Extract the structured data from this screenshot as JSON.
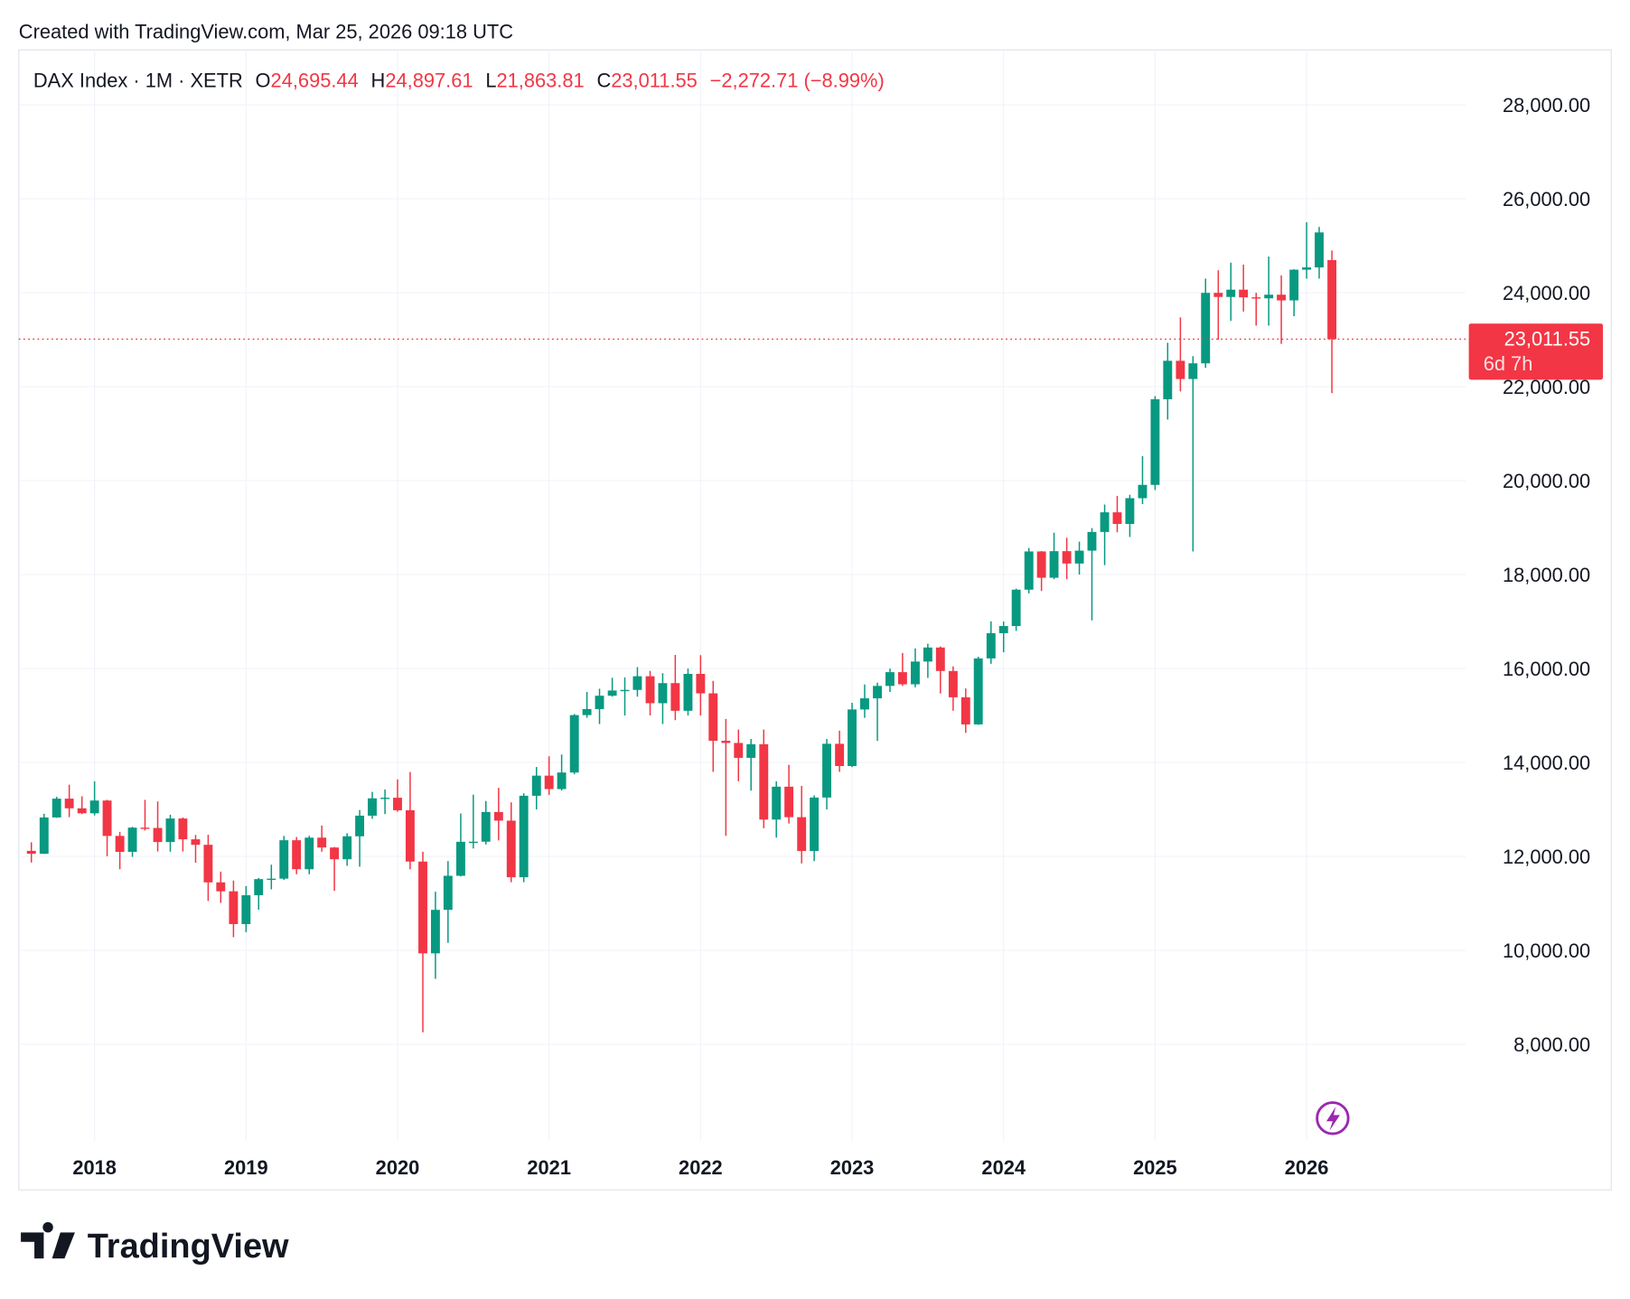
{
  "header": {
    "created": "Created with TradingView.com, Mar 25, 2026 09:18 UTC",
    "symbol": "DAX Index · 1M · XETR",
    "o": "O",
    "open": "24,695.44",
    "h": "H",
    "high": "24,897.61",
    "l": "L",
    "low": "21,863.81",
    "c": "C",
    "close": "23,011.55",
    "change": "−2,272.71 (−8.99%)"
  },
  "chart_data": {
    "type": "candlestick",
    "up_color": "#089981",
    "down_color": "#f23645",
    "grid": true,
    "x": [
      2017.583,
      2017.667,
      2017.75,
      2017.833,
      2017.917,
      2018,
      2018.083,
      2018.167,
      2018.25,
      2018.333,
      2018.417,
      2018.5,
      2018.583,
      2018.667,
      2018.75,
      2018.833,
      2018.917,
      2019,
      2019.083,
      2019.167,
      2019.25,
      2019.333,
      2019.417,
      2019.5,
      2019.583,
      2019.667,
      2019.75,
      2019.833,
      2019.917,
      2020,
      2020.083,
      2020.167,
      2020.25,
      2020.333,
      2020.417,
      2020.5,
      2020.583,
      2020.667,
      2020.75,
      2020.833,
      2020.917,
      2021,
      2021.083,
      2021.167,
      2021.25,
      2021.333,
      2021.417,
      2021.5,
      2021.583,
      2021.667,
      2021.75,
      2021.833,
      2021.917,
      2022,
      2022.083,
      2022.167,
      2022.25,
      2022.333,
      2022.417,
      2022.5,
      2022.583,
      2022.667,
      2022.75,
      2022.833,
      2022.917,
      2023,
      2023.083,
      2023.167,
      2023.25,
      2023.333,
      2023.417,
      2023.5,
      2023.583,
      2023.667,
      2023.75,
      2023.833,
      2023.917,
      2024,
      2024.083,
      2024.167,
      2024.25,
      2024.333,
      2024.417,
      2024.5,
      2024.583,
      2024.667,
      2024.75,
      2024.833,
      2024.917,
      2025,
      2025.083,
      2025.167,
      2025.25,
      2025.333,
      2025.417,
      2025.5,
      2025.583,
      2025.667,
      2025.75,
      2025.833,
      2025.917,
      2026,
      2026.083,
      2026.167
    ],
    "open": [
      12118,
      12056,
      12829,
      13229,
      13024,
      12918,
      13189,
      12436,
      12097,
      12612,
      12605,
      12306,
      12806,
      12364,
      12247,
      11447,
      11257,
      10559,
      11173,
      11516,
      11526,
      12344,
      11727,
      12399,
      12189,
      11939,
      12428,
      12867,
      13236,
      13249,
      12982,
      11890,
      9936,
      10862,
      11587,
      12311,
      12313,
      12945,
      12761,
      11556,
      13291,
      13719,
      13433,
      13786,
      15008,
      15136,
      15421,
      15531,
      15544,
      15835,
      15261,
      15689,
      15100,
      15885,
      15471,
      14461,
      14415,
      14098,
      14388,
      12784,
      13484,
      12835,
      12114,
      13253,
      14397,
      13924,
      15128,
      15365,
      15629,
      15922,
      15664,
      16148,
      16447,
      15947,
      15387,
      14810,
      16215,
      16752,
      16904,
      17678,
      18492,
      17932,
      18498,
      18235,
      18509,
      18907,
      19325,
      19078,
      19626,
      19909,
      21732,
      22551,
      22163,
      22497,
      23997,
      23910,
      24065,
      23902,
      23881,
      23958,
      23837,
      24490,
      24539,
      24695.44
    ],
    "high": [
      12301,
      12907,
      13269,
      13526,
      13279,
      13597,
      13205,
      12522,
      12630,
      13204,
      13170,
      12887,
      12830,
      12457,
      12461,
      11677,
      11486,
      11368,
      11540,
      11823,
      12435,
      12413,
      12438,
      12656,
      12200,
      12494,
      12988,
      13374,
      13425,
      13640,
      13795,
      12100,
      11247,
      11900,
      12913,
      13314,
      13180,
      13460,
      13150,
      13344,
      13903,
      14131,
      14169,
      15030,
      15502,
      15569,
      15803,
      15810,
      16030,
      15950,
      15900,
      16290,
      16000,
      16285,
      15736,
      14925,
      14700,
      14500,
      14700,
      13600,
      13950,
      13500,
      13300,
      14500,
      14675,
      15270,
      15660,
      15700,
      16000,
      16331,
      16427,
      16528,
      16470,
      16045,
      15575,
      16250,
      17003,
      17000,
      17700,
      18567,
      18500,
      18892,
      18784,
      18700,
      18990,
      19491,
      19675,
      19700,
      20523,
      21800,
      22935,
      23476,
      22650,
      24300,
      24479,
      24640,
      24600,
      24000,
      24771,
      24370,
      24500,
      25500,
      25400,
      24897.61
    ],
    "low": [
      11869,
      12053,
      12820,
      12836,
      12900,
      12871,
      12003,
      11727,
      11990,
      12550,
      12104,
      12100,
      12105,
      11865,
      11051,
      11009,
      10279,
      10386,
      10864,
      11299,
      11500,
      11620,
      11620,
      12100,
      11266,
      11800,
      11780,
      12800,
      12900,
      12950,
      11724,
      8256,
      9393,
      10160,
      11573,
      12168,
      12254,
      12340,
      11450,
      11450,
      13000,
      13310,
      13400,
      13750,
      14950,
      14817,
      15400,
      15000,
      15400,
      15000,
      14820,
      14900,
      15000,
      15000,
      13800,
      12439,
      13600,
      13400,
      12600,
      12400,
      12700,
      11850,
      11900,
      13000,
      13800,
      13900,
      14950,
      14458,
      15500,
      15629,
      15600,
      15800,
      15469,
      15100,
      14630,
      14800,
      16100,
      16345,
      16800,
      17600,
      17650,
      17900,
      17900,
      18000,
      17024,
      18200,
      18900,
      18800,
      19500,
      19800,
      21300,
      21900,
      18490,
      22400,
      23000,
      23400,
      23600,
      23300,
      23300,
      22911,
      23500,
      24300,
      24300,
      21863.81
    ],
    "close": [
      12056,
      12829,
      13229,
      13024,
      12918,
      13189,
      12436,
      12097,
      12612,
      12605,
      12306,
      12806,
      12364,
      12247,
      11447,
      11257,
      10559,
      11173,
      11516,
      11526,
      12344,
      11727,
      12399,
      12189,
      11939,
      12428,
      12867,
      13236,
      13249,
      12982,
      11890,
      9936,
      10862,
      11587,
      12311,
      12313,
      12945,
      12761,
      11556,
      13291,
      13719,
      13433,
      13786,
      15008,
      15136,
      15421,
      15531,
      15544,
      15835,
      15261,
      15689,
      15100,
      15885,
      15471,
      14461,
      14415,
      14098,
      14388,
      12784,
      13484,
      12835,
      12114,
      13253,
      14397,
      13924,
      15128,
      15365,
      15629,
      15922,
      15664,
      16148,
      16447,
      15947,
      15387,
      14810,
      16215,
      16752,
      16904,
      17678,
      18492,
      17932,
      18498,
      18235,
      18509,
      18907,
      19325,
      19078,
      19626,
      19909,
      21732,
      22551,
      22163,
      22497,
      23997,
      23910,
      24065,
      23902,
      23881,
      23958,
      23837,
      24490,
      24539,
      25284,
      23011.55
    ],
    "last_price_label": "23,011.55",
    "countdown": "6d 7h",
    "xlim": [
      2017.5,
      2027.05
    ],
    "xticks": [
      2018,
      2019,
      2020,
      2021,
      2022,
      2023,
      2024,
      2025,
      2026
    ],
    "ylim": [
      5940,
      29170
    ],
    "yticks": [
      {
        "value": 8000,
        "label": "8,000.00"
      },
      {
        "value": 10000,
        "label": "10,000.00"
      },
      {
        "value": 12000,
        "label": "12,000.00"
      },
      {
        "value": 14000,
        "label": "14,000.00"
      },
      {
        "value": 16000,
        "label": "16,000.00"
      },
      {
        "value": 18000,
        "label": "18,000.00"
      },
      {
        "value": 20000,
        "label": "20,000.00"
      },
      {
        "value": 22000,
        "label": "22,000.00"
      },
      {
        "value": 24000,
        "label": "24,000.00"
      },
      {
        "value": 26000,
        "label": "26,000.00"
      },
      {
        "value": 28000,
        "label": "28,000.00"
      }
    ]
  },
  "logo": "TradingView"
}
